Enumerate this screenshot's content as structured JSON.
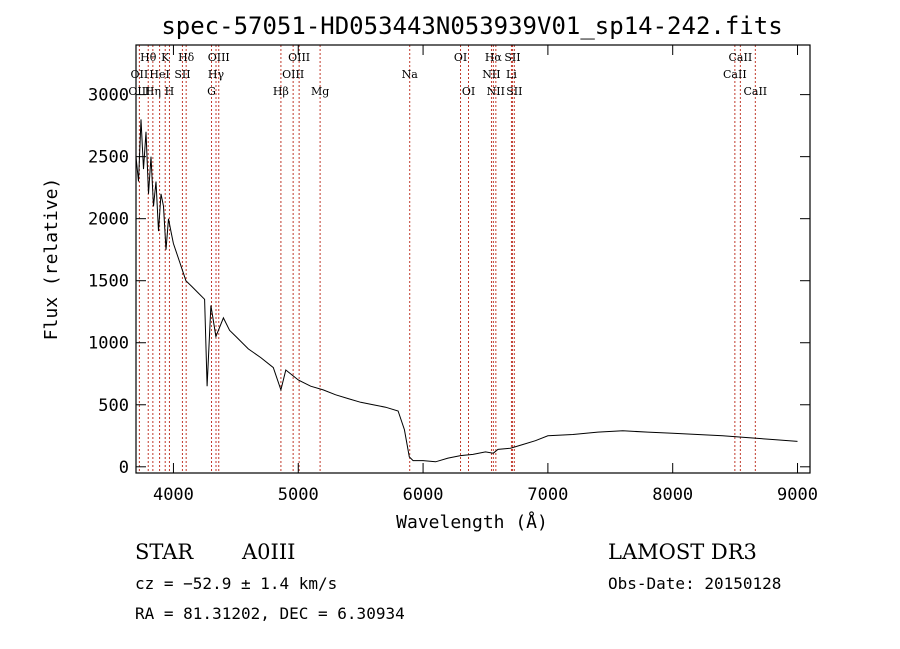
{
  "chart_data": {
    "type": "line",
    "title": "spec-57051-HD053443N053939V01_sp14-242.fits",
    "xlabel": "Wavelength (Å)",
    "ylabel": "Flux (relative)",
    "xlim": [
      3700,
      9100
    ],
    "ylim": [
      -50,
      3400
    ],
    "x_ticks": [
      4000,
      5000,
      6000,
      7000,
      8000,
      9000
    ],
    "y_ticks": [
      0,
      500,
      1000,
      1500,
      2000,
      2500,
      3000
    ],
    "series": [
      {
        "name": "spectrum",
        "x": [
          3700,
          3720,
          3740,
          3760,
          3780,
          3800,
          3820,
          3840,
          3860,
          3880,
          3900,
          3920,
          3940,
          3960,
          3980,
          4000,
          4050,
          4100,
          4150,
          4200,
          4250,
          4270,
          4300,
          4340,
          4400,
          4450,
          4500,
          4600,
          4700,
          4800,
          4861,
          4900,
          5000,
          5100,
          5200,
          5300,
          5400,
          5500,
          5600,
          5700,
          5800,
          5850,
          5890,
          5920,
          6000,
          6100,
          6200,
          6300,
          6400,
          6500,
          6563,
          6600,
          6700,
          6800,
          6900,
          7000,
          7200,
          7400,
          7600,
          7800,
          8000,
          8200,
          8400,
          8600,
          8800,
          9000
        ],
        "y": [
          2500,
          2300,
          2800,
          2400,
          2700,
          2200,
          2500,
          2100,
          2300,
          1900,
          2200,
          2100,
          1750,
          2000,
          1900,
          1800,
          1650,
          1500,
          1450,
          1400,
          1350,
          650,
          1300,
          1050,
          1200,
          1100,
          1050,
          950,
          880,
          800,
          620,
          780,
          700,
          650,
          620,
          580,
          550,
          520,
          500,
          480,
          450,
          300,
          80,
          50,
          50,
          40,
          70,
          90,
          100,
          120,
          110,
          140,
          150,
          180,
          210,
          250,
          260,
          280,
          290,
          280,
          270,
          260,
          250,
          235,
          220,
          205
        ]
      }
    ],
    "line_markers": [
      {
        "label": "Hθ",
        "wavelength": 3798,
        "row": 1
      },
      {
        "label": "OII",
        "wavelength": 3727,
        "row": 2
      },
      {
        "label": "OIII",
        "wavelength": 3727,
        "row": 3
      },
      {
        "label": "HeI",
        "wavelength": 3889,
        "row": 2
      },
      {
        "label": "Hη",
        "wavelength": 3835,
        "row": 3
      },
      {
        "label": "K",
        "wavelength": 3934,
        "row": 1
      },
      {
        "label": "H",
        "wavelength": 3968,
        "row": 3
      },
      {
        "label": "SII",
        "wavelength": 4072,
        "row": 2
      },
      {
        "label": "Hδ",
        "wavelength": 4102,
        "row": 1
      },
      {
        "label": "OIII",
        "wavelength": 4363,
        "row": 1
      },
      {
        "label": "Hγ",
        "wavelength": 4341,
        "row": 2
      },
      {
        "label": "G",
        "wavelength": 4305,
        "row": 3
      },
      {
        "label": "OIII",
        "wavelength": 5007,
        "row": 1
      },
      {
        "label": "OIII",
        "wavelength": 4959,
        "row": 2
      },
      {
        "label": "Hβ",
        "wavelength": 4861,
        "row": 3
      },
      {
        "label": "Mg",
        "wavelength": 5175,
        "row": 3
      },
      {
        "label": "Na",
        "wavelength": 5893,
        "row": 2
      },
      {
        "label": "OI",
        "wavelength": 6300,
        "row": 1
      },
      {
        "label": "OI",
        "wavelength": 6364,
        "row": 3
      },
      {
        "label": "Hα",
        "wavelength": 6563,
        "row": 1
      },
      {
        "label": "SII",
        "wavelength": 6716,
        "row": 1
      },
      {
        "label": "NII",
        "wavelength": 6548,
        "row": 2
      },
      {
        "label": "Li",
        "wavelength": 6708,
        "row": 2
      },
      {
        "label": "NII",
        "wavelength": 6583,
        "row": 3
      },
      {
        "label": "SII",
        "wavelength": 6731,
        "row": 3
      },
      {
        "label": "CaII",
        "wavelength": 8542,
        "row": 1
      },
      {
        "label": "CaII",
        "wavelength": 8498,
        "row": 2
      },
      {
        "label": "CaII",
        "wavelength": 8662,
        "row": 3
      }
    ]
  },
  "info": {
    "class_label": "STAR",
    "subclass": "A0III",
    "survey": "LAMOST DR3",
    "cz": "cz = −52.9 ± 1.4 km/s",
    "obs_date": "Obs-Date: 20150128",
    "radec": "RA =  81.31202, DEC =   6.30934"
  }
}
